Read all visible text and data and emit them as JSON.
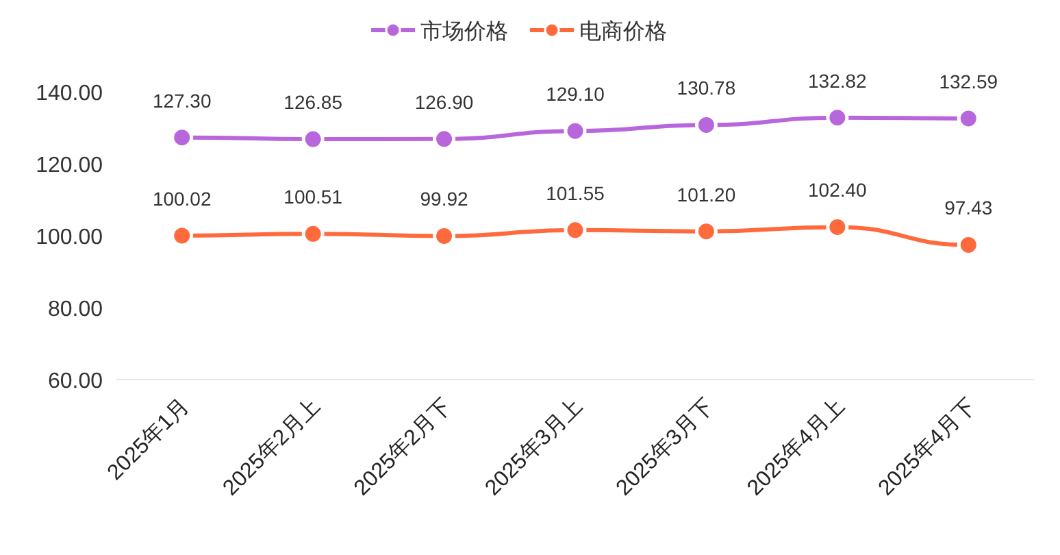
{
  "chart_data": {
    "type": "line",
    "categories": [
      "2025年1月",
      "2025年2月上",
      "2025年2月下",
      "2025年3月上",
      "2025年3月下",
      "2025年4月上",
      "2025年4月下"
    ],
    "series": [
      {
        "name": "市场价格",
        "color": "#b866dc",
        "values": [
          127.3,
          126.85,
          126.9,
          129.1,
          130.78,
          132.82,
          132.59
        ],
        "value_labels": [
          "127.30",
          "126.85",
          "126.90",
          "129.10",
          "130.78",
          "132.82",
          "132.59"
        ]
      },
      {
        "name": "电商价格",
        "color": "#ff6a3c",
        "values": [
          100.02,
          100.51,
          99.92,
          101.55,
          101.2,
          102.4,
          97.43
        ],
        "value_labels": [
          "100.02",
          "100.51",
          "99.92",
          "101.55",
          "101.20",
          "102.40",
          "97.43"
        ]
      }
    ],
    "ylim": [
      60,
      140
    ],
    "yticks": [
      {
        "value": 60,
        "label": "60.00"
      },
      {
        "value": 80,
        "label": "80.00"
      },
      {
        "value": 100,
        "label": "100.00"
      },
      {
        "value": 120,
        "label": "120.00"
      },
      {
        "value": 140,
        "label": "140.00"
      }
    ],
    "legend": "top",
    "marker": "circle",
    "line_style": "solid"
  }
}
